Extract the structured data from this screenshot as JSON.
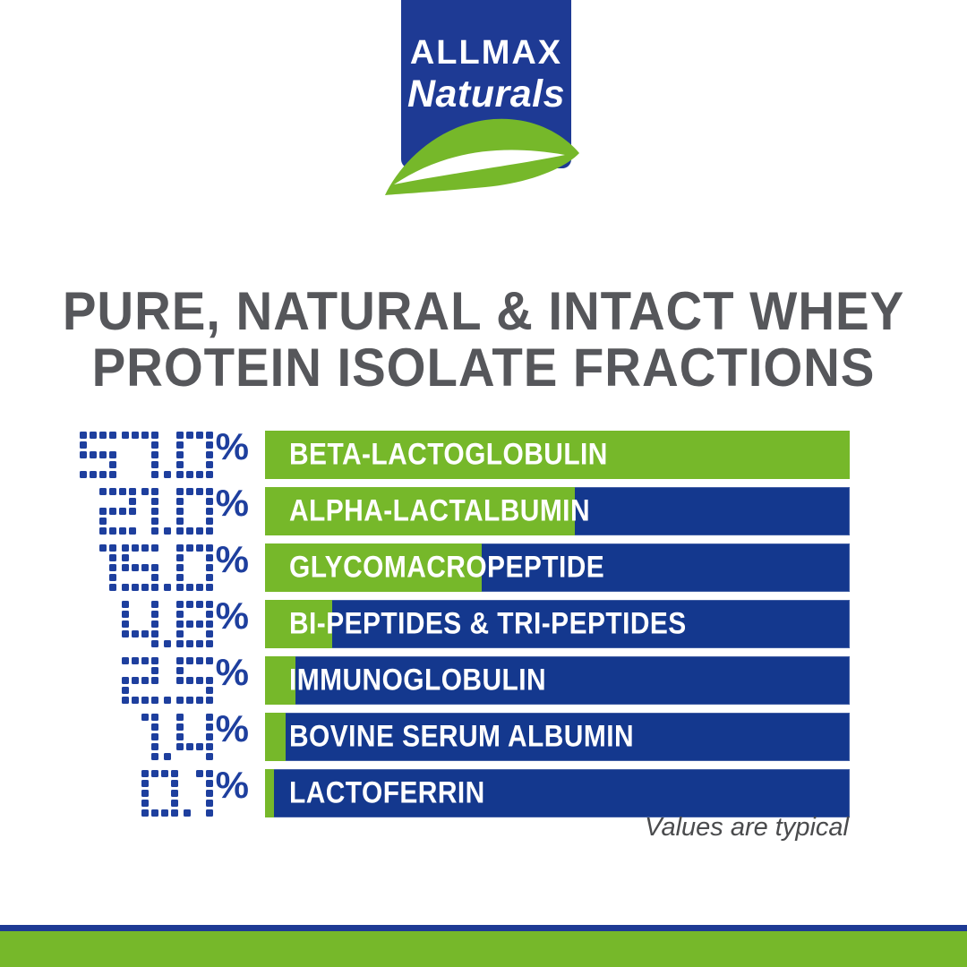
{
  "logo": {
    "brand": "ALLMAX",
    "sub": "Naturals"
  },
  "title": {
    "line1": "PURE, NATURAL & INTACT WHEY",
    "line2": "PROTEIN ISOLATE FRACTIONS"
  },
  "chart_data": {
    "type": "bar",
    "orientation": "horizontal",
    "title": "PURE, NATURAL & INTACT WHEY PROTEIN ISOLATE FRACTIONS",
    "unit": "%",
    "categories": [
      "BETA-LACTOGLOBULIN",
      "ALPHA-LACTALBUMIN",
      "GLYCOMACROPEPTIDE",
      "BI-PEPTIDES & TRI-PEPTIDES",
      "IMMUNOGLOBULIN",
      "BOVINE SERUM ALBUMIN",
      "LACTOFERRIN"
    ],
    "values": [
      57.0,
      21.0,
      15.0,
      4.8,
      2.5,
      1.4,
      0.1
    ],
    "value_labels": [
      "57.0",
      "21.0",
      "15.0",
      "4.8",
      "2.5",
      "1.4",
      "0.1"
    ],
    "green_fill_pct": [
      100,
      53,
      37,
      11.5,
      5.2,
      3.5,
      1.5
    ],
    "note": "Values are typical",
    "legend": null,
    "grid": false
  },
  "colors": {
    "brand_blue": "#1e3a94",
    "bar_blue": "#14388e",
    "green": "#76b82a",
    "digit_blue": "#1e3f9e",
    "title_gray": "#56575b",
    "note_gray": "#4a4b4d",
    "bar_label_white": "#ffffff"
  }
}
